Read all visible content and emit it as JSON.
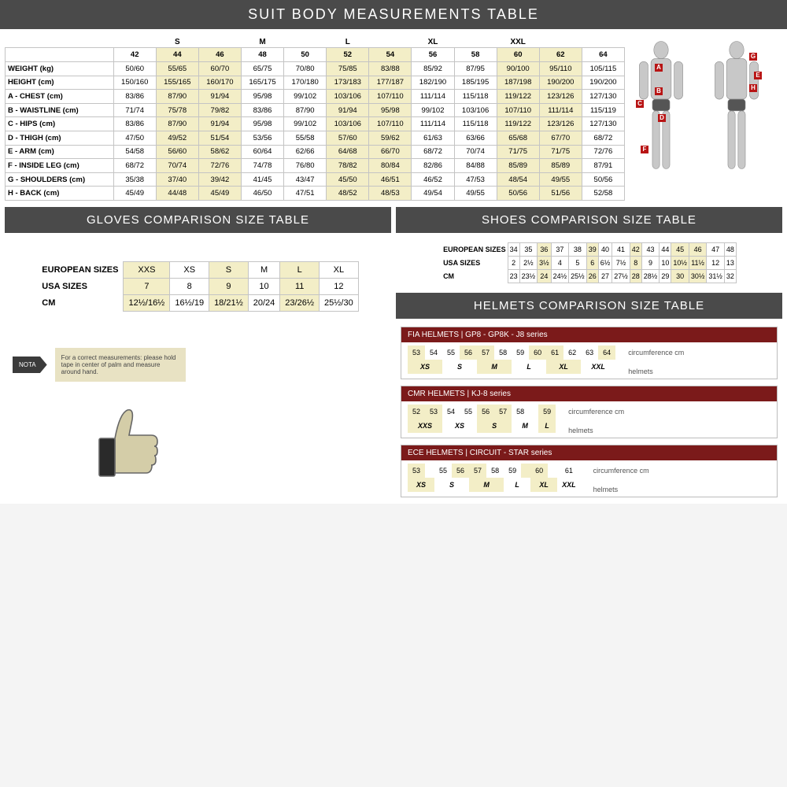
{
  "colors": {
    "header": "#4a4a4a",
    "accent": "#7b1a1a",
    "highlight": "#f3eec7",
    "border": "#c4c4c4"
  },
  "suit": {
    "title": "SUIT BODY MEASUREMENTS TABLE",
    "size_groups": [
      "",
      "S",
      "",
      "M",
      "",
      "L",
      "",
      "XL",
      "",
      "XXL",
      "",
      ""
    ],
    "sizes": [
      "42",
      "44",
      "46",
      "48",
      "50",
      "52",
      "54",
      "56",
      "58",
      "60",
      "62",
      "64"
    ],
    "highlight_cols": [
      1,
      2,
      5,
      6,
      9,
      10
    ],
    "rows": [
      {
        "label": "WEIGHT (kg)",
        "v": [
          "50/60",
          "55/65",
          "60/70",
          "65/75",
          "70/80",
          "75/85",
          "83/88",
          "85/92",
          "87/95",
          "90/100",
          "95/110",
          "105/115"
        ]
      },
      {
        "label": "HEIGHT (cm)",
        "v": [
          "150/160",
          "155/165",
          "160/170",
          "165/175",
          "170/180",
          "173/183",
          "177/187",
          "182/190",
          "185/195",
          "187/198",
          "190/200",
          "190/200"
        ]
      },
      {
        "label": "A - CHEST (cm)",
        "v": [
          "83/86",
          "87/90",
          "91/94",
          "95/98",
          "99/102",
          "103/106",
          "107/110",
          "111/114",
          "115/118",
          "119/122",
          "123/126",
          "127/130"
        ]
      },
      {
        "label": "B - WAISTLINE (cm)",
        "v": [
          "71/74",
          "75/78",
          "79/82",
          "83/86",
          "87/90",
          "91/94",
          "95/98",
          "99/102",
          "103/106",
          "107/110",
          "111/114",
          "115/119"
        ]
      },
      {
        "label": "C - HIPS (cm)",
        "v": [
          "83/86",
          "87/90",
          "91/94",
          "95/98",
          "99/102",
          "103/106",
          "107/110",
          "111/114",
          "115/118",
          "119/122",
          "123/126",
          "127/130"
        ]
      },
      {
        "label": "D - THIGH (cm)",
        "v": [
          "47/50",
          "49/52",
          "51/54",
          "53/56",
          "55/58",
          "57/60",
          "59/62",
          "61/63",
          "63/66",
          "65/68",
          "67/70",
          "68/72"
        ]
      },
      {
        "label": "E - ARM (cm)",
        "v": [
          "54/58",
          "56/60",
          "58/62",
          "60/64",
          "62/66",
          "64/68",
          "66/70",
          "68/72",
          "70/74",
          "71/75",
          "71/75",
          "72/76"
        ]
      },
      {
        "label": "F - INSIDE LEG (cm)",
        "v": [
          "68/72",
          "70/74",
          "72/76",
          "74/78",
          "76/80",
          "78/82",
          "80/84",
          "82/86",
          "84/88",
          "85/89",
          "85/89",
          "87/91"
        ]
      },
      {
        "label": "G - SHOULDERS (cm)",
        "v": [
          "35/38",
          "37/40",
          "39/42",
          "41/45",
          "43/47",
          "45/50",
          "46/51",
          "46/52",
          "47/53",
          "48/54",
          "49/55",
          "50/56"
        ]
      },
      {
        "label": "H - BACK (cm)",
        "v": [
          "45/49",
          "44/48",
          "45/49",
          "46/50",
          "47/51",
          "48/52",
          "48/53",
          "49/54",
          "49/55",
          "50/56",
          "51/56",
          "52/58"
        ]
      }
    ],
    "body_labels_front": [
      "A",
      "B",
      "C",
      "D",
      "F"
    ],
    "body_labels_back": [
      "G",
      "E",
      "H"
    ]
  },
  "gloves": {
    "title": "GLOVES COMPARISON SIZE TABLE",
    "rows": [
      {
        "label": "EUROPEAN SIZES",
        "v": [
          "XXS",
          "XS",
          "S",
          "M",
          "L",
          "XL"
        ]
      },
      {
        "label": "USA SIZES",
        "v": [
          "7",
          "8",
          "9",
          "10",
          "11",
          "12"
        ]
      },
      {
        "label": "CM",
        "v": [
          "12½/16½",
          "16½/19",
          "18/21½",
          "20/24",
          "23/26½",
          "25½/30"
        ]
      }
    ],
    "highlight_cols": [
      0,
      2,
      4
    ],
    "nota_label": "NOTA",
    "nota_text": "For a correct measurements: please hold tape in center of palm and measure around hand."
  },
  "shoes": {
    "title": "SHOES COMPARISON SIZE TABLE",
    "rows": [
      {
        "label": "EUROPEAN SIZES",
        "v": [
          "34",
          "35",
          "36",
          "37",
          "38",
          "39",
          "40",
          "41",
          "42",
          "43",
          "44",
          "45",
          "46",
          "47",
          "48"
        ]
      },
      {
        "label": "USA SIZES",
        "v": [
          "2",
          "2½",
          "3½",
          "4",
          "5",
          "6",
          "6½",
          "7½",
          "8",
          "9",
          "10",
          "10½",
          "11½",
          "12",
          "13"
        ]
      },
      {
        "label": "CM",
        "v": [
          "23",
          "23½",
          "24",
          "24½",
          "25½",
          "26",
          "27",
          "27½",
          "28",
          "28½",
          "29",
          "30",
          "30½",
          "31½",
          "32"
        ]
      }
    ],
    "highlight_cols": [
      2,
      5,
      8,
      11,
      12
    ]
  },
  "helmets": {
    "title": "HELMETS COMPARISON SIZE TABLE",
    "sections": [
      {
        "name": "FIA HELMETS | GP8 - GP8K - J8 series",
        "circ": [
          "53",
          "54",
          "55",
          "56",
          "57",
          "58",
          "59",
          "60",
          "61",
          "62",
          "63",
          "64"
        ],
        "sizes": [
          "XS",
          "",
          "S",
          "",
          "M",
          "",
          "L",
          "",
          "XL",
          "",
          "XXL",
          ""
        ],
        "hi": [
          0,
          3,
          4,
          7,
          8,
          11
        ],
        "merge": 2
      },
      {
        "name": "CMR HELMETS | KJ-8 series",
        "circ": [
          "52",
          "53",
          "54",
          "55",
          "56",
          "57",
          "58",
          "",
          "59"
        ],
        "sizes": [
          "XXS",
          "",
          "XS",
          "",
          "S",
          "",
          "M",
          "",
          "L"
        ],
        "hi": [
          0,
          1,
          4,
          5,
          8
        ],
        "merge": 2
      },
      {
        "name": "ECE HELMETS | CIRCUIT - STAR series",
        "circ": [
          "53",
          "",
          "55",
          "56",
          "57",
          "58",
          "59",
          "",
          "60",
          "",
          "61"
        ],
        "sizes": [
          "XS",
          "",
          "S",
          "",
          "M",
          "",
          "L",
          "",
          "XL",
          "",
          "XXL"
        ],
        "hi": [
          0,
          3,
          4,
          7,
          8
        ],
        "merge": 2
      }
    ],
    "labels": [
      "circumference cm",
      "helmets"
    ]
  }
}
